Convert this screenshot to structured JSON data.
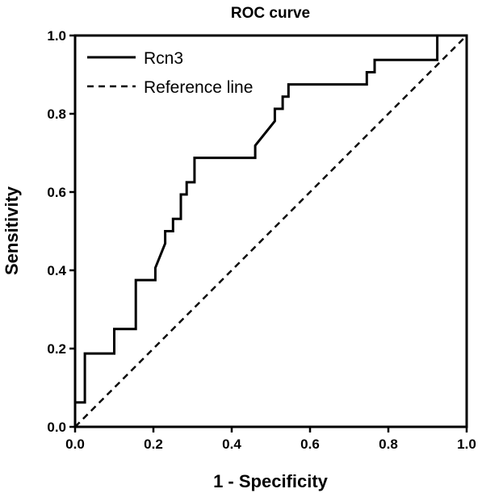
{
  "chart_data": {
    "type": "line",
    "title": "ROC curve",
    "xlabel": "1 - Specificity",
    "ylabel": "Sensitivity",
    "xlim": [
      0.0,
      1.0
    ],
    "ylim": [
      0.0,
      1.0
    ],
    "xticks": [
      "0.0",
      "0.2",
      "0.4",
      "0.6",
      "0.8",
      "1.0"
    ],
    "yticks": [
      "0.0",
      "0.2",
      "0.4",
      "0.6",
      "0.8",
      "1.0"
    ],
    "grid": false,
    "legend_position": "top-left",
    "series": [
      {
        "name": "Rcn3",
        "style": "solid",
        "color": "#000000",
        "x": [
          0.0,
          0.0,
          0.025,
          0.025,
          0.1,
          0.1,
          0.155,
          0.155,
          0.205,
          0.205,
          0.23,
          0.23,
          0.25,
          0.25,
          0.27,
          0.27,
          0.285,
          0.285,
          0.305,
          0.305,
          0.46,
          0.46,
          0.51,
          0.51,
          0.53,
          0.53,
          0.545,
          0.545,
          0.56,
          0.56,
          0.745,
          0.745,
          0.765,
          0.765,
          0.925,
          0.925,
          1.0
        ],
        "y": [
          0.0,
          0.0625,
          0.0625,
          0.1875,
          0.1875,
          0.25,
          0.25,
          0.375,
          0.375,
          0.40625,
          0.46875,
          0.5,
          0.5,
          0.53125,
          0.53125,
          0.59375,
          0.59375,
          0.625,
          0.625,
          0.6875,
          0.6875,
          0.71875,
          0.78125,
          0.8125,
          0.8125,
          0.84375,
          0.84375,
          0.875,
          0.875,
          0.875,
          0.875,
          0.90625,
          0.90625,
          0.9375,
          0.9375,
          1.0,
          1.0
        ]
      },
      {
        "name": "Reference line",
        "style": "dashed",
        "color": "#000000",
        "x": [
          0.0,
          1.0
        ],
        "y": [
          0.0,
          1.0
        ]
      }
    ]
  }
}
